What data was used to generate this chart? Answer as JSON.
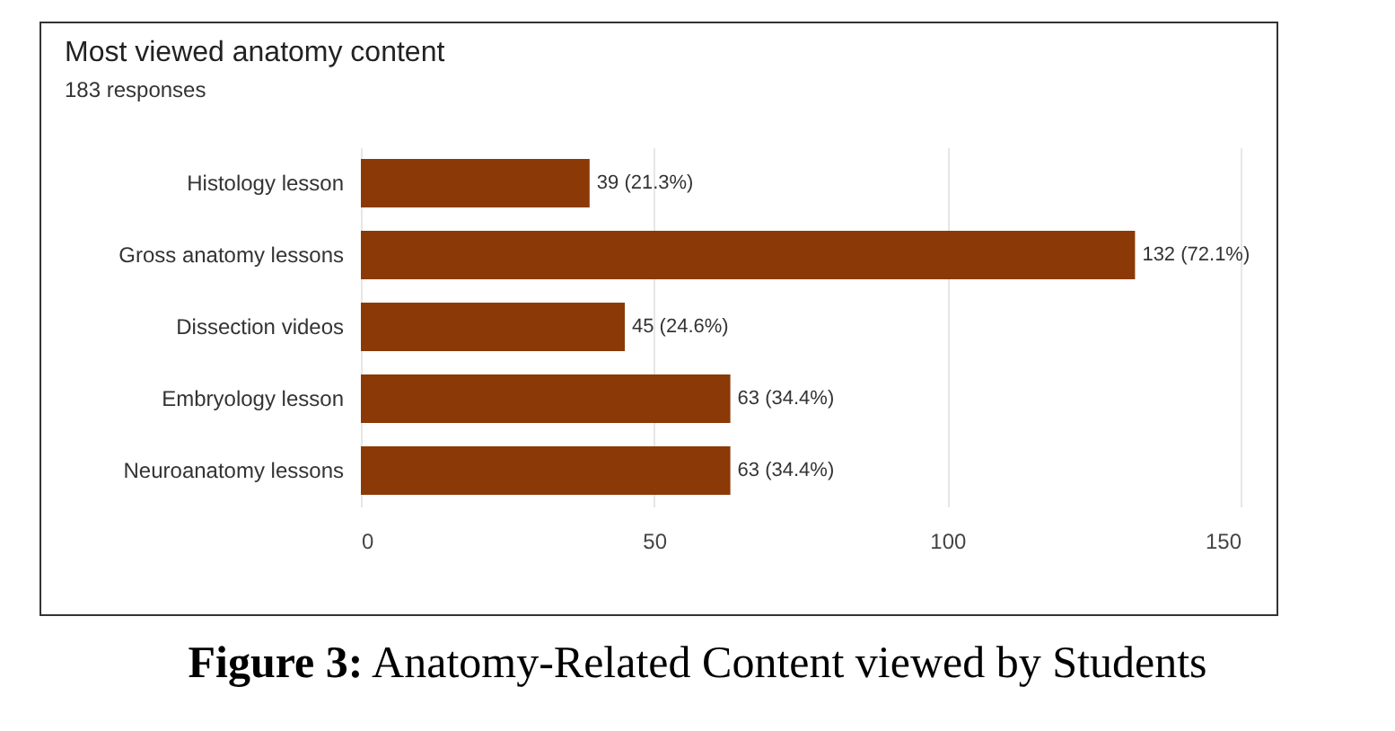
{
  "chart_data": {
    "type": "bar",
    "orientation": "horizontal",
    "title": "Most viewed anatomy content",
    "subtitle": "183 responses",
    "categories": [
      "Histology lesson",
      "Gross anatomy lessons",
      "Dissection videos",
      "Embryology lesson",
      "Neuroanatomy lessons"
    ],
    "values": [
      39,
      132,
      45,
      63,
      63
    ],
    "value_labels": [
      "39 (21.3%)",
      "132 (72.1%)",
      "45 (24.6%)",
      "63 (34.4%)",
      "63 (34.4%)"
    ],
    "color": "#8b3a07",
    "xlim": [
      0,
      150
    ],
    "xticks": [
      0,
      50,
      100,
      150
    ],
    "grid": "x",
    "annotations": [
      "Figure 3: Anatomy-Related Content viewed by Students"
    ]
  }
}
